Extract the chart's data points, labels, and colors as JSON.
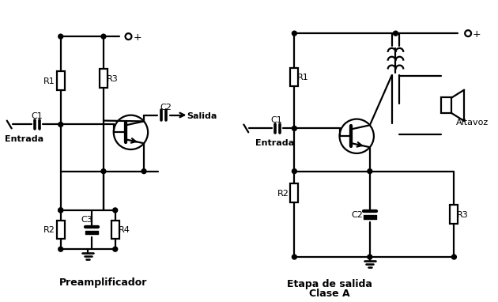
{
  "background_color": "#ffffff",
  "label_preamplificador": "Preamplificador",
  "label_etapa": "Etapa de salida",
  "label_clase_a": "Clase A",
  "label_entrada1": "Entrada",
  "label_entrada2": "Entrada",
  "label_salida": "Salida",
  "label_altavoz": "Altavoz",
  "label_plus": "+",
  "R1": "R1",
  "R2": "R2",
  "R3": "R3",
  "R4": "R4",
  "C1": "C1",
  "C2": "C2",
  "C3": "C3"
}
